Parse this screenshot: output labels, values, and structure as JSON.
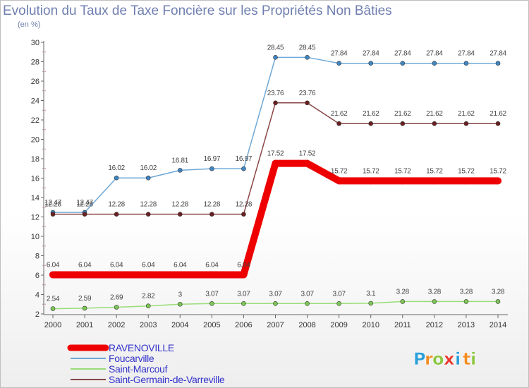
{
  "chart_data": {
    "type": "line",
    "title": "Evolution du Taux de Taxe Foncière sur les Propriétés Non Bâties",
    "ylabel": "(en %)",
    "xlabel": "",
    "x": [
      "2000",
      "2001",
      "2002",
      "2003",
      "2004",
      "2005",
      "2006",
      "2007",
      "2008",
      "2009",
      "2010",
      "2011",
      "2012",
      "2013",
      "2014"
    ],
    "ylim": [
      2,
      30
    ],
    "yticks": [
      "2",
      "4",
      "6",
      "8",
      "10",
      "12",
      "14",
      "16",
      "18",
      "20",
      "22",
      "24",
      "26",
      "28",
      "30"
    ],
    "series": [
      {
        "name": "Foucarville",
        "color": "#6fa8d6",
        "marker": "#3f86c4",
        "values": [
          12.47,
          12.47,
          16.02,
          16.02,
          16.81,
          16.97,
          16.97,
          28.45,
          28.45,
          27.84,
          27.84,
          27.84,
          27.84,
          27.84,
          27.84
        ],
        "labels": [
          "12.47",
          "12.47",
          "16.02",
          "16.02",
          "16.81",
          "16.97",
          "16.97",
          "28.45",
          "28.45",
          "27.84",
          "27.84",
          "27.84",
          "27.84",
          "27.84",
          "27.84"
        ]
      },
      {
        "name": "Saint-Germain-de-Varreville",
        "color": "#8a4545",
        "marker": "#6b1f1f",
        "values": [
          12.28,
          12.28,
          12.28,
          12.28,
          12.28,
          12.28,
          12.28,
          23.76,
          23.76,
          21.62,
          21.62,
          21.62,
          21.62,
          21.62,
          21.62
        ],
        "labels": [
          "12.28",
          "12.28",
          "12.28",
          "12.28",
          "12.28",
          "12.28",
          "12.28",
          "23.76",
          "23.76",
          "21.62",
          "21.62",
          "21.62",
          "21.62",
          "21.62",
          "21.62"
        ]
      },
      {
        "name": "RAVENOVILLE",
        "color": "#ee0000",
        "marker": "#ee0000",
        "values": [
          6.04,
          6.04,
          6.04,
          6.04,
          6.04,
          6.04,
          6.04,
          17.52,
          17.52,
          15.72,
          15.72,
          15.72,
          15.72,
          15.72,
          15.72
        ],
        "labels": [
          "6.04",
          "6.04",
          "6.04",
          "6.04",
          "6.04",
          "6.04",
          "6.04",
          "17.52",
          "17.52",
          "15.72",
          "15.72",
          "15.72",
          "15.72",
          "15.72",
          "15.72"
        ]
      },
      {
        "name": "Saint-Marcouf",
        "color": "#99dd77",
        "marker": "#7dc855",
        "values": [
          2.54,
          2.59,
          2.69,
          2.82,
          3,
          3.07,
          3.07,
          3.07,
          3.07,
          3.07,
          3.1,
          3.28,
          3.28,
          3.28,
          3.28
        ],
        "labels": [
          "2.54",
          "2.59",
          "2.69",
          "2.82",
          "3",
          "3.07",
          "3.07",
          "3.07",
          "3.07",
          "3.07",
          "3.1",
          "3.28",
          "3.28",
          "3.28",
          "3.28"
        ]
      }
    ],
    "legend": [
      {
        "name": "RAVENOVILLE",
        "color": "#ee0000"
      },
      {
        "name": "Foucarville",
        "color": "#6fa8d6"
      },
      {
        "name": "Saint-Marcouf",
        "color": "#99dd77"
      },
      {
        "name": "Saint-Germain-de-Varreville",
        "color": "#8a4545"
      }
    ],
    "legend_position": "bottom-left",
    "grid": false
  },
  "logo": {
    "text": "Proxiti",
    "letters": [
      "P",
      "r",
      "o",
      "x",
      "i",
      "t",
      "i"
    ],
    "colors": [
      "#2a9fd8",
      "#f28c1e",
      "#8cc63f",
      "#e8382f",
      "#2a9fd8",
      "#f28c1e",
      "#8cc63f"
    ]
  }
}
